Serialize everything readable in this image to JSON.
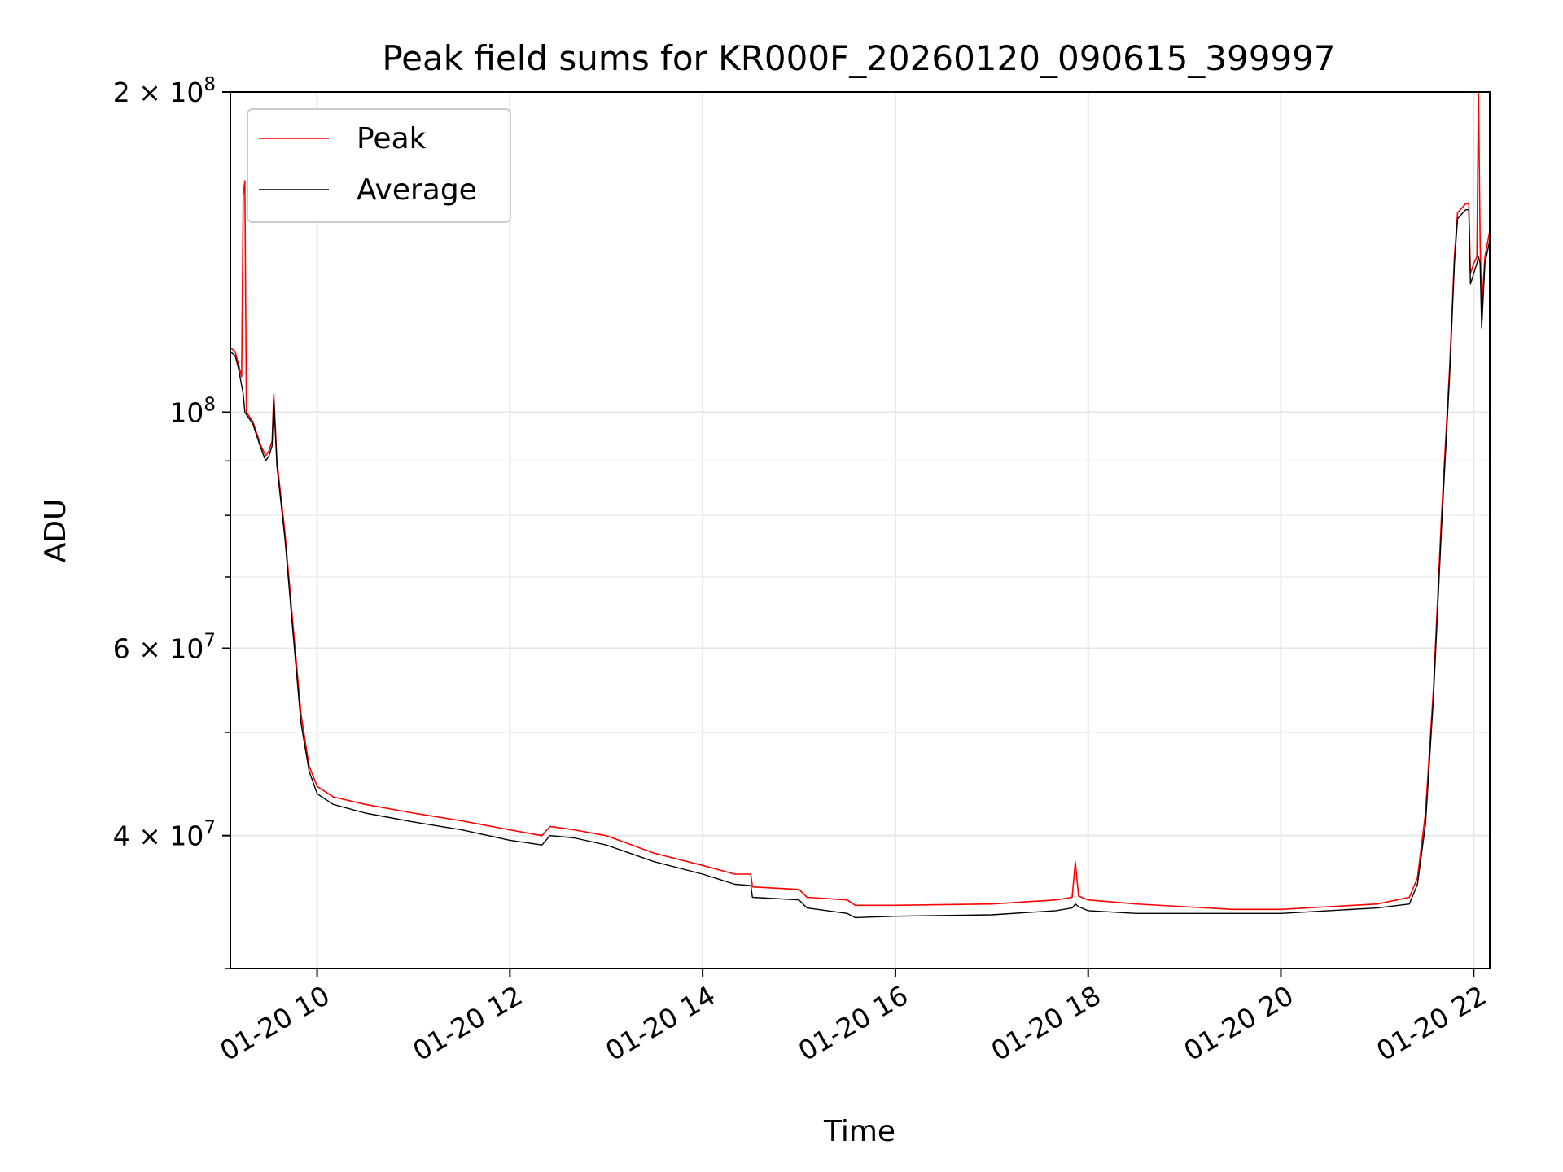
{
  "chart_data": {
    "type": "line",
    "title": "Peak field sums for KR000F_20260120_090615_399997",
    "xlabel": "Time",
    "ylabel": "ADU",
    "y_scale": "log",
    "grid": true,
    "legend_position": "top-left",
    "xlim": [
      "2026-01-20 09:06",
      "2026-01-20 22:10"
    ],
    "ylim": [
      30000000,
      200000000
    ],
    "x_ticks": [
      {
        "value": "2026-01-20 10:00",
        "label": "01-20 10"
      },
      {
        "value": "2026-01-20 12:00",
        "label": "01-20 12"
      },
      {
        "value": "2026-01-20 14:00",
        "label": "01-20 14"
      },
      {
        "value": "2026-01-20 16:00",
        "label": "01-20 16"
      },
      {
        "value": "2026-01-20 18:00",
        "label": "01-20 18"
      },
      {
        "value": "2026-01-20 20:00",
        "label": "01-20 20"
      },
      {
        "value": "2026-01-20 22:00",
        "label": "01-20 22"
      }
    ],
    "y_ticks": [
      {
        "value": 40000000,
        "base": "4 × 10",
        "exp": "7"
      },
      {
        "value": 60000000,
        "base": "6 × 10",
        "exp": "7"
      },
      {
        "value": 100000000,
        "base": "10",
        "exp": "8"
      },
      {
        "value": 200000000,
        "base": "2 × 10",
        "exp": "8"
      }
    ],
    "y_minor_ticks": [
      30000000,
      50000000,
      70000000,
      80000000,
      90000000
    ],
    "series": [
      {
        "name": "Peak",
        "color": "#ff0000",
        "points": [
          [
            "2026-01-20 09:06",
            115000000
          ],
          [
            "2026-01-20 09:09",
            114000000
          ],
          [
            "2026-01-20 09:11",
            111000000
          ],
          [
            "2026-01-20 09:13",
            108000000
          ],
          [
            "2026-01-20 09:14",
            160000000
          ],
          [
            "2026-01-20 09:15",
            165000000
          ],
          [
            "2026-01-20 09:16",
            100000000
          ],
          [
            "2026-01-20 09:20",
            98000000
          ],
          [
            "2026-01-20 09:25",
            93000000
          ],
          [
            "2026-01-20 09:28",
            91000000
          ],
          [
            "2026-01-20 09:30",
            92000000
          ],
          [
            "2026-01-20 09:32",
            94000000
          ],
          [
            "2026-01-20 09:33",
            104000000
          ],
          [
            "2026-01-20 09:35",
            90000000
          ],
          [
            "2026-01-20 09:40",
            77000000
          ],
          [
            "2026-01-20 09:45",
            63000000
          ],
          [
            "2026-01-20 09:50",
            52000000
          ],
          [
            "2026-01-20 09:55",
            46500000
          ],
          [
            "2026-01-20 10:00",
            44500000
          ],
          [
            "2026-01-20 10:10",
            43500000
          ],
          [
            "2026-01-20 10:30",
            42800000
          ],
          [
            "2026-01-20 11:00",
            42000000
          ],
          [
            "2026-01-20 11:30",
            41300000
          ],
          [
            "2026-01-20 12:00",
            40500000
          ],
          [
            "2026-01-20 12:20",
            40000000
          ],
          [
            "2026-01-20 12:25",
            40800000
          ],
          [
            "2026-01-20 12:40",
            40500000
          ],
          [
            "2026-01-20 13:00",
            40000000
          ],
          [
            "2026-01-20 13:30",
            38500000
          ],
          [
            "2026-01-20 14:00",
            37500000
          ],
          [
            "2026-01-20 14:20",
            36800000
          ],
          [
            "2026-01-20 14:30",
            36800000
          ],
          [
            "2026-01-20 14:31",
            35800000
          ],
          [
            "2026-01-20 15:00",
            35600000
          ],
          [
            "2026-01-20 15:05",
            35000000
          ],
          [
            "2026-01-20 15:30",
            34800000
          ],
          [
            "2026-01-20 15:35",
            34400000
          ],
          [
            "2026-01-20 16:00",
            34400000
          ],
          [
            "2026-01-20 17:00",
            34500000
          ],
          [
            "2026-01-20 17:40",
            34800000
          ],
          [
            "2026-01-20 17:50",
            35000000
          ],
          [
            "2026-01-20 17:52",
            37800000
          ],
          [
            "2026-01-20 17:54",
            35100000
          ],
          [
            "2026-01-20 18:00",
            34800000
          ],
          [
            "2026-01-20 18:30",
            34500000
          ],
          [
            "2026-01-20 19:00",
            34300000
          ],
          [
            "2026-01-20 19:30",
            34100000
          ],
          [
            "2026-01-20 20:00",
            34100000
          ],
          [
            "2026-01-20 20:30",
            34300000
          ],
          [
            "2026-01-20 21:00",
            34500000
          ],
          [
            "2026-01-20 21:20",
            35000000
          ],
          [
            "2026-01-20 21:25",
            36500000
          ],
          [
            "2026-01-20 21:30",
            42000000
          ],
          [
            "2026-01-20 21:35",
            55000000
          ],
          [
            "2026-01-20 21:40",
            80000000
          ],
          [
            "2026-01-20 21:45",
            110000000
          ],
          [
            "2026-01-20 21:48",
            140000000
          ],
          [
            "2026-01-20 21:50",
            154000000
          ],
          [
            "2026-01-20 21:55",
            157000000
          ],
          [
            "2026-01-20 21:57",
            157000000
          ],
          [
            "2026-01-20 21:58",
            135000000
          ],
          [
            "2026-01-20 22:00",
            138000000
          ],
          [
            "2026-01-20 22:02",
            140000000
          ],
          [
            "2026-01-20 22:03",
            200000000
          ],
          [
            "2026-01-20 22:04",
            145000000
          ],
          [
            "2026-01-20 22:05",
            125000000
          ],
          [
            "2026-01-20 22:07",
            140000000
          ],
          [
            "2026-01-20 22:10",
            148000000
          ]
        ]
      },
      {
        "name": "Average",
        "color": "#000000",
        "points": [
          [
            "2026-01-20 09:06",
            114000000
          ],
          [
            "2026-01-20 09:09",
            113000000
          ],
          [
            "2026-01-20 09:11",
            110000000
          ],
          [
            "2026-01-20 09:13",
            106000000
          ],
          [
            "2026-01-20 09:14",
            104000000
          ],
          [
            "2026-01-20 09:15",
            100000000
          ],
          [
            "2026-01-20 09:20",
            97500000
          ],
          [
            "2026-01-20 09:25",
            92500000
          ],
          [
            "2026-01-20 09:28",
            90000000
          ],
          [
            "2026-01-20 09:30",
            91000000
          ],
          [
            "2026-01-20 09:32",
            93000000
          ],
          [
            "2026-01-20 09:33",
            103000000
          ],
          [
            "2026-01-20 09:35",
            89000000
          ],
          [
            "2026-01-20 09:40",
            76000000
          ],
          [
            "2026-01-20 09:45",
            62000000
          ],
          [
            "2026-01-20 09:50",
            51000000
          ],
          [
            "2026-01-20 09:55",
            46000000
          ],
          [
            "2026-01-20 10:00",
            43800000
          ],
          [
            "2026-01-20 10:10",
            42800000
          ],
          [
            "2026-01-20 10:30",
            42000000
          ],
          [
            "2026-01-20 11:00",
            41200000
          ],
          [
            "2026-01-20 11:30",
            40500000
          ],
          [
            "2026-01-20 12:00",
            39600000
          ],
          [
            "2026-01-20 12:20",
            39200000
          ],
          [
            "2026-01-20 12:25",
            40000000
          ],
          [
            "2026-01-20 12:40",
            39800000
          ],
          [
            "2026-01-20 13:00",
            39200000
          ],
          [
            "2026-01-20 13:30",
            37800000
          ],
          [
            "2026-01-20 14:00",
            36800000
          ],
          [
            "2026-01-20 14:20",
            36000000
          ],
          [
            "2026-01-20 14:30",
            35900000
          ],
          [
            "2026-01-20 14:31",
            35000000
          ],
          [
            "2026-01-20 15:00",
            34800000
          ],
          [
            "2026-01-20 15:05",
            34200000
          ],
          [
            "2026-01-20 15:30",
            33800000
          ],
          [
            "2026-01-20 15:35",
            33500000
          ],
          [
            "2026-01-20 16:00",
            33600000
          ],
          [
            "2026-01-20 17:00",
            33700000
          ],
          [
            "2026-01-20 17:40",
            34000000
          ],
          [
            "2026-01-20 17:50",
            34200000
          ],
          [
            "2026-01-20 17:52",
            34500000
          ],
          [
            "2026-01-20 17:54",
            34300000
          ],
          [
            "2026-01-20 18:00",
            34000000
          ],
          [
            "2026-01-20 18:30",
            33800000
          ],
          [
            "2026-01-20 19:00",
            33800000
          ],
          [
            "2026-01-20 19:30",
            33800000
          ],
          [
            "2026-01-20 20:00",
            33800000
          ],
          [
            "2026-01-20 20:30",
            34000000
          ],
          [
            "2026-01-20 21:00",
            34200000
          ],
          [
            "2026-01-20 21:20",
            34500000
          ],
          [
            "2026-01-20 21:25",
            36000000
          ],
          [
            "2026-01-20 21:30",
            41000000
          ],
          [
            "2026-01-20 21:35",
            54000000
          ],
          [
            "2026-01-20 21:40",
            78000000
          ],
          [
            "2026-01-20 21:45",
            108000000
          ],
          [
            "2026-01-20 21:48",
            138000000
          ],
          [
            "2026-01-20 21:50",
            152000000
          ],
          [
            "2026-01-20 21:55",
            155000000
          ],
          [
            "2026-01-20 21:57",
            155000000
          ],
          [
            "2026-01-20 21:58",
            132000000
          ],
          [
            "2026-01-20 22:00",
            135000000
          ],
          [
            "2026-01-20 22:02",
            138000000
          ],
          [
            "2026-01-20 22:03",
            140000000
          ],
          [
            "2026-01-20 22:04",
            138000000
          ],
          [
            "2026-01-20 22:05",
            120000000
          ],
          [
            "2026-01-20 22:07",
            138000000
          ],
          [
            "2026-01-20 22:10",
            145000000
          ]
        ]
      }
    ]
  }
}
